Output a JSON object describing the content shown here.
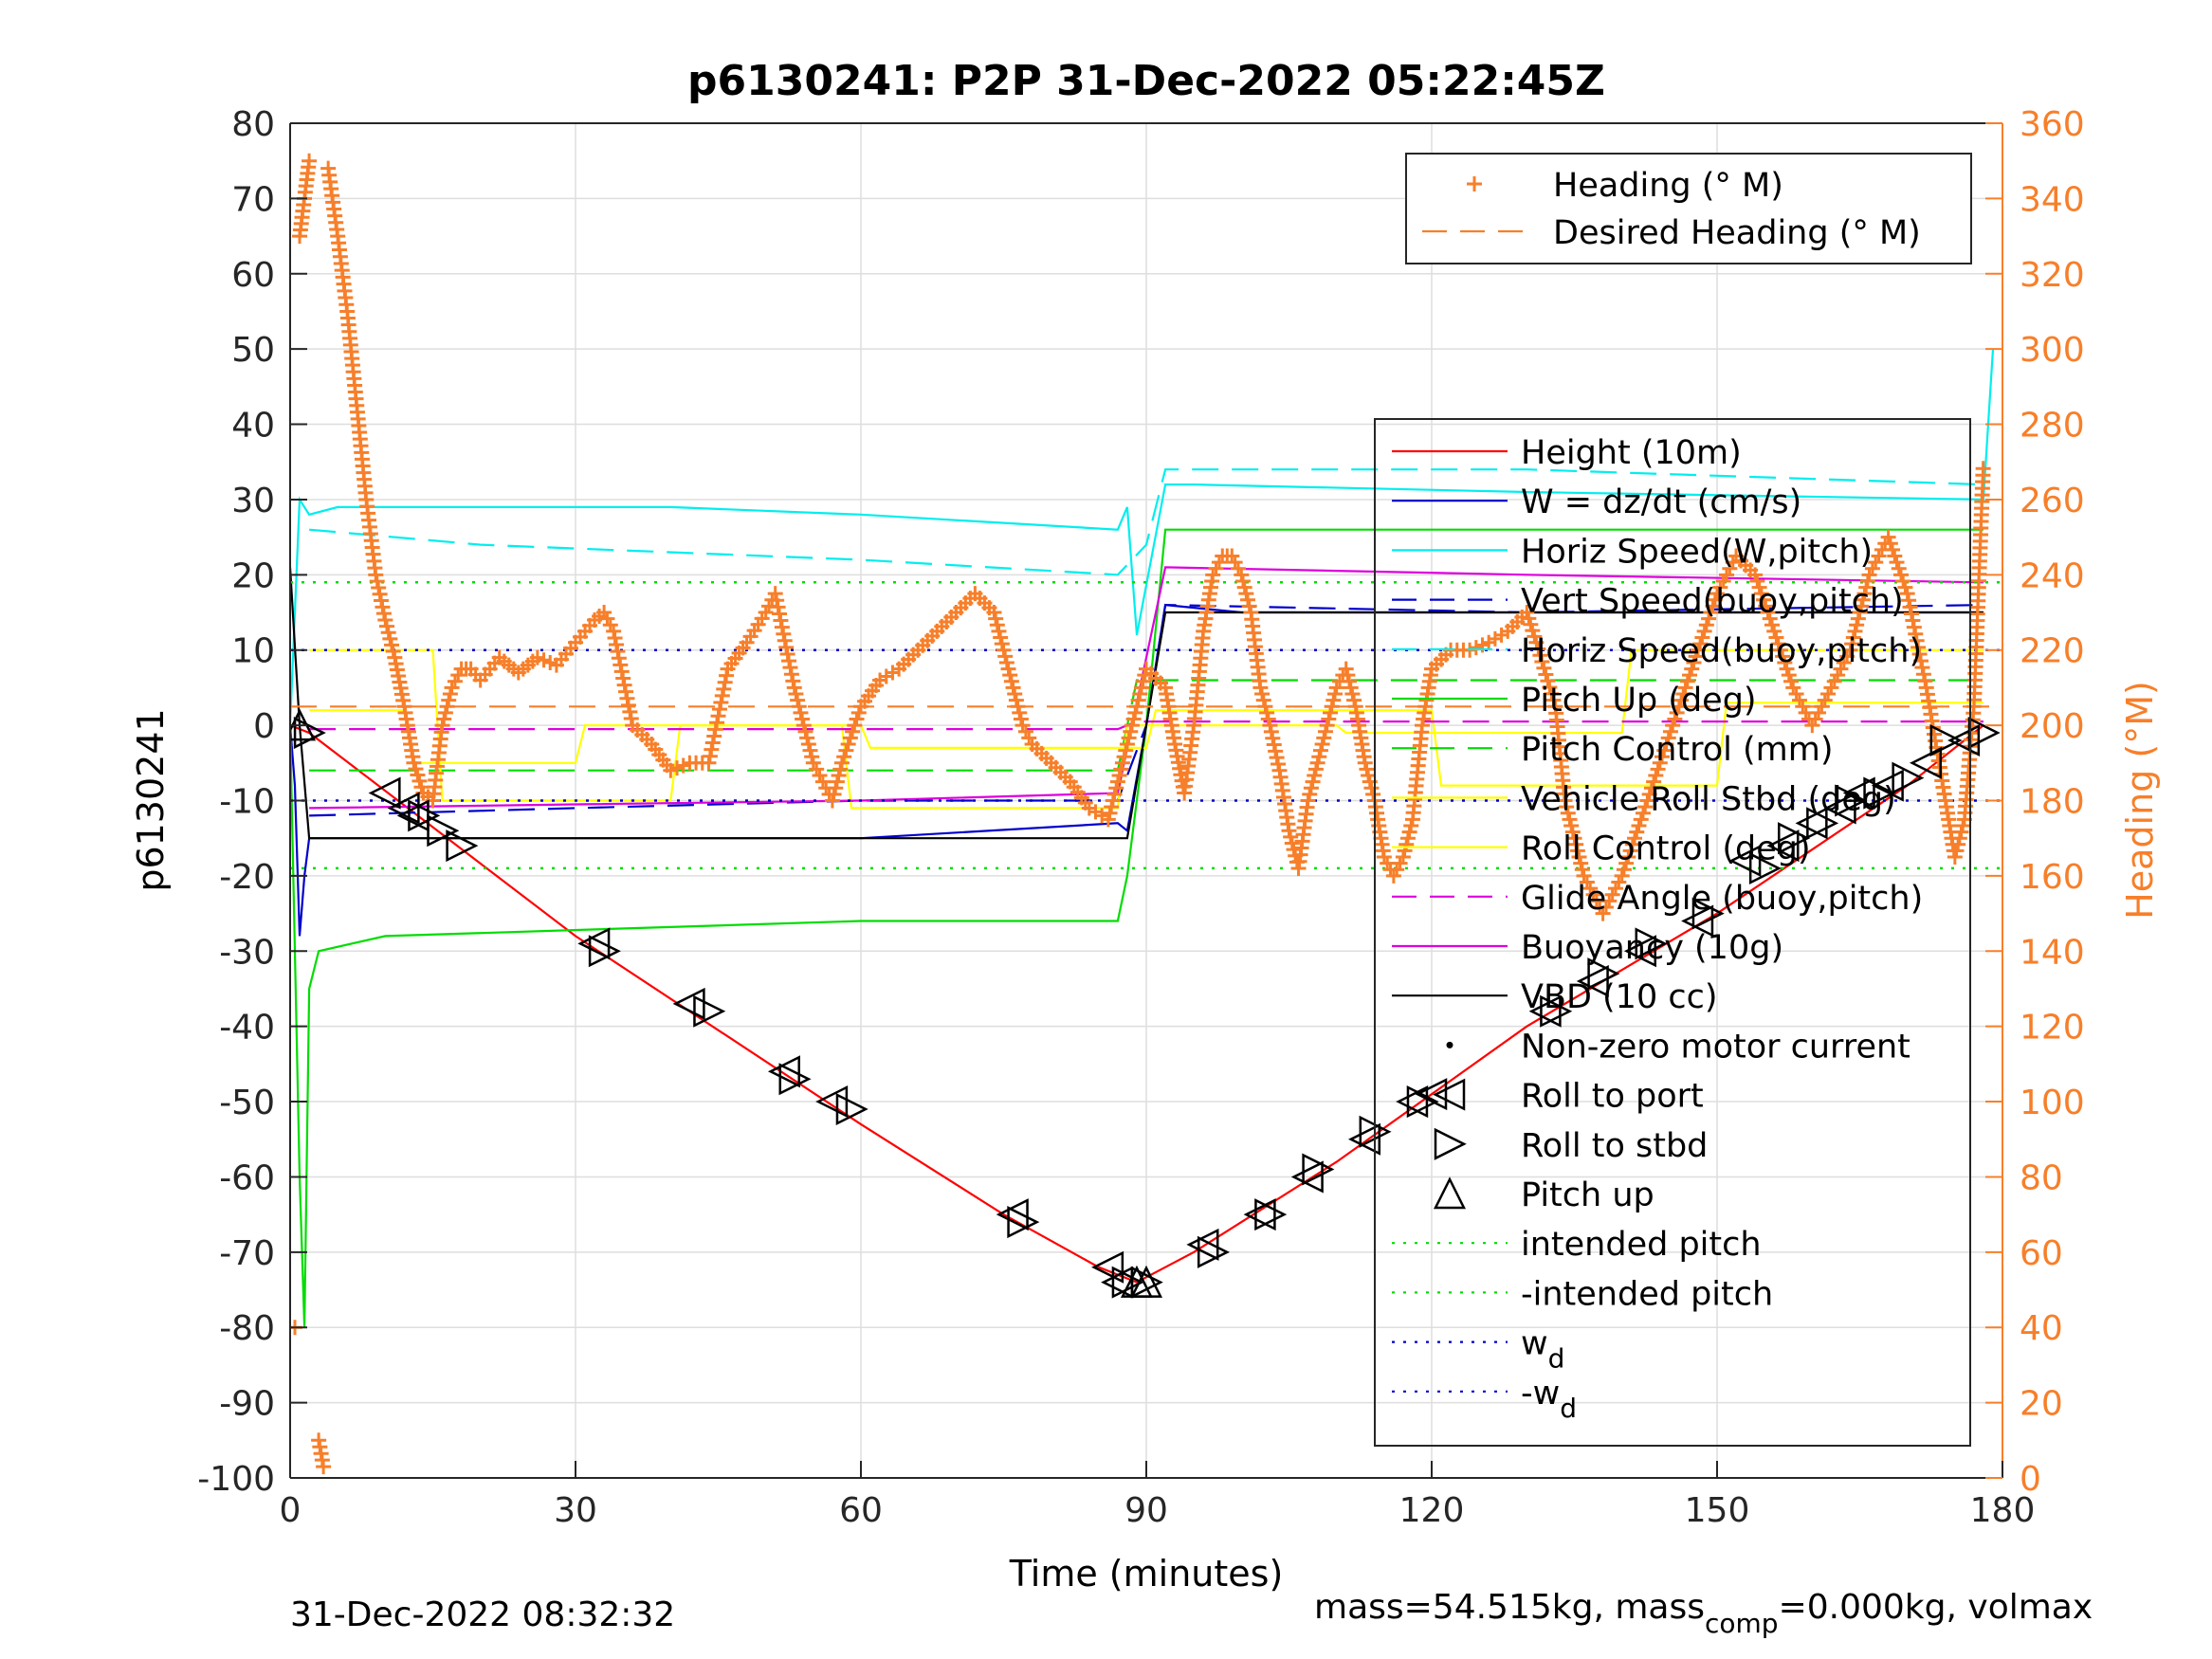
{
  "chart_data": {
    "type": "line",
    "title": "p6130241: P2P 31-Dec-2022 05:22:45Z",
    "xlabel": "Time (minutes)",
    "ylabel_left": "p6130241",
    "ylabel_right": "Heading (°M)",
    "footer_left": "31-Dec-2022 08:32:32",
    "footer_right_prefix": "mass=54.515kg, mass",
    "footer_right_sub": "comp",
    "footer_right_suffix": "=0.000kg, volmax",
    "xlim": [
      0,
      180
    ],
    "ylim_left": [
      -100,
      80
    ],
    "ylim_right": [
      0,
      360
    ],
    "xticks": [
      0,
      30,
      60,
      90,
      120,
      150,
      180
    ],
    "xtick_labels": [
      "0",
      "30",
      "60",
      "90",
      "120",
      "150",
      "180"
    ],
    "yticks_left": [
      80,
      70,
      60,
      50,
      40,
      30,
      20,
      10,
      0,
      -10,
      -20,
      -30,
      -40,
      -50,
      -60,
      -70,
      -80,
      -90,
      -100
    ],
    "ytick_labels_left": [
      "80",
      "70",
      "60",
      "50",
      "40",
      "30",
      "20",
      "10",
      "0",
      "-10",
      "-20",
      "-30",
      "-40",
      "-50",
      "-60",
      "-70",
      "-80",
      "-90",
      "-100"
    ],
    "yticks_right": [
      360,
      340,
      320,
      300,
      280,
      260,
      240,
      220,
      200,
      180,
      160,
      140,
      120,
      100,
      80,
      60,
      40,
      20,
      0
    ],
    "ytick_labels_right": [
      "360",
      "340",
      "320",
      "300",
      "280",
      "260",
      "240",
      "220",
      "200",
      "180",
      "160",
      "140",
      "120",
      "100",
      "80",
      "60",
      "40",
      "20",
      "0"
    ],
    "grid": true,
    "legend_heading": {
      "placement": "top-right",
      "entries": [
        {
          "label": "Heading (° M)",
          "color": "#f77f2a",
          "style": "plus"
        },
        {
          "label": "Desired Heading (° M)",
          "color": "#f77f2a",
          "style": "dashed"
        }
      ]
    },
    "legend_main": {
      "placement": "right",
      "entries": [
        {
          "label": "Height (10m)",
          "color": "#ff0000",
          "style": "solid"
        },
        {
          "label": "W = dz/dt (cm/s)",
          "color": "#0000cc",
          "style": "solid"
        },
        {
          "label": "Horiz Speed(W,pitch)",
          "color": "#00eeee",
          "style": "solid"
        },
        {
          "label": "Vert Speed(buoy,pitch)",
          "color": "#0000cc",
          "style": "dashed"
        },
        {
          "label": "Horiz Speed(buoy,pitch)",
          "color": "#00eeee",
          "style": "dashed"
        },
        {
          "label": "Pitch Up (deg)",
          "color": "#00dd00",
          "style": "solid"
        },
        {
          "label": "Pitch Control (mm)",
          "color": "#00dd00",
          "style": "dashed"
        },
        {
          "label": "Vehicle Roll Stbd (deg)",
          "color": "#ffff00",
          "style": "solid"
        },
        {
          "label": "Roll Control (deg)",
          "color": "#ffff00",
          "style": "solid"
        },
        {
          "label": "Glide Angle (buoy,pitch)",
          "color": "#dd00dd",
          "style": "dashed"
        },
        {
          "label": "Buoyancy (10g)",
          "color": "#dd00dd",
          "style": "solid"
        },
        {
          "label": "VBD (10 cc)",
          "color": "#000000",
          "style": "solid"
        },
        {
          "label": "Non-zero motor current",
          "color": "#000000",
          "style": "dot"
        },
        {
          "label": "Roll to port",
          "color": "#000000",
          "style": "tri-left"
        },
        {
          "label": "Roll to stbd",
          "color": "#000000",
          "style": "tri-right"
        },
        {
          "label": "Pitch up",
          "color": "#000000",
          "style": "tri-up"
        },
        {
          "label": "intended pitch",
          "color": "#00dd00",
          "style": "dotted"
        },
        {
          "label": "-intended pitch",
          "color": "#00dd00",
          "style": "dotted"
        },
        {
          "label": "w",
          "sub": "d",
          "color": "#0000cc",
          "style": "dotted"
        },
        {
          "label": "-w",
          "sub": "d",
          "color": "#0000cc",
          "style": "dotted"
        }
      ]
    },
    "series": [
      {
        "name": "Height (10m)",
        "axis": "left",
        "color": "#ff0000",
        "dash": "",
        "x": [
          0,
          2,
          30,
          60,
          75,
          85,
          89,
          95,
          110,
          130,
          150,
          170,
          178
        ],
        "y": [
          0,
          -1,
          -28,
          -53,
          -65,
          -72,
          -74,
          -70,
          -58,
          -40,
          -25,
          -8,
          0
        ]
      },
      {
        "name": "W = dz/dt (cm/s)",
        "axis": "left",
        "color": "#0000cc",
        "dash": "",
        "x": [
          0,
          0.5,
          1,
          1.5,
          2,
          3,
          10,
          30,
          60,
          87,
          88,
          90,
          92,
          100,
          130,
          150,
          178
        ],
        "y": [
          0,
          -8,
          -28,
          -20,
          -15,
          -15,
          -15,
          -15,
          -15,
          -13,
          -14,
          0,
          16,
          15,
          15,
          15,
          15
        ]
      },
      {
        "name": "Horiz Speed(W,pitch)",
        "axis": "left",
        "color": "#00eeee",
        "dash": "",
        "x": [
          0,
          1,
          2,
          5,
          20,
          40,
          60,
          87,
          88,
          89,
          92,
          95,
          130,
          178,
          179
        ],
        "y": [
          0,
          30,
          28,
          29,
          29,
          29,
          28,
          26,
          29,
          12,
          32,
          32,
          31,
          30,
          50
        ]
      },
      {
        "name": "Vert Speed(buoy,pitch)",
        "axis": "left",
        "color": "#0000cc",
        "dash": "28,14",
        "x": [
          2,
          30,
          60,
          87,
          90,
          92,
          130,
          178
        ],
        "y": [
          -12,
          -11,
          -10,
          -10,
          0,
          16,
          15,
          16
        ]
      },
      {
        "name": "Horiz Speed(buoy,pitch)",
        "axis": "left",
        "color": "#00eeee",
        "dash": "28,14",
        "x": [
          2,
          20,
          60,
          87,
          90,
          92,
          130,
          178
        ],
        "y": [
          26,
          24,
          22,
          20,
          24,
          34,
          34,
          32
        ]
      },
      {
        "name": "Pitch Up (deg)",
        "axis": "left",
        "color": "#00dd00",
        "dash": "",
        "x": [
          0,
          1,
          1.5,
          2,
          3,
          10,
          60,
          87,
          88,
          90,
          92,
          130,
          178
        ],
        "y": [
          0,
          -60,
          -80,
          -35,
          -30,
          -28,
          -26,
          -26,
          -20,
          0,
          26,
          26,
          26
        ]
      },
      {
        "name": "Pitch Control (mm)",
        "axis": "left",
        "color": "#00dd00",
        "dash": "28,14",
        "x": [
          2,
          87,
          89,
          178
        ],
        "y": [
          -6,
          -6,
          6,
          6
        ]
      },
      {
        "name": "Vehicle Roll Stbd (deg)",
        "axis": "left",
        "color": "#ffff00",
        "dash": "",
        "x": [
          2,
          12,
          13,
          30,
          31,
          60,
          61,
          90,
          91,
          120,
          121,
          150,
          151,
          178
        ],
        "y": [
          2,
          2,
          -5,
          -5,
          0,
          0,
          -3,
          -3,
          2,
          2,
          -8,
          -8,
          3,
          3
        ]
      },
      {
        "name": "Roll Control (deg)",
        "axis": "left",
        "color": "#ffff00",
        "dash": "",
        "x": [
          2,
          15,
          16,
          40,
          41,
          58,
          59,
          87,
          88,
          110,
          111,
          140,
          141,
          178
        ],
        "y": [
          10,
          10,
          -10,
          -10,
          0,
          0,
          -11,
          -11,
          0,
          0,
          -1,
          -1,
          10,
          10
        ]
      },
      {
        "name": "Glide Angle (buoy,pitch)",
        "axis": "left",
        "color": "#dd00dd",
        "dash": "28,14",
        "x": [
          2,
          87,
          89,
          178
        ],
        "y": [
          -0.5,
          -0.5,
          0.5,
          0.5
        ]
      },
      {
        "name": "Buoyancy (10g)",
        "axis": "left",
        "color": "#dd00dd",
        "dash": "",
        "x": [
          2,
          30,
          60,
          87,
          92,
          130,
          178
        ],
        "y": [
          -11,
          -10.5,
          -10,
          -9,
          21,
          20,
          19
        ]
      },
      {
        "name": "VBD (10 cc)",
        "axis": "left",
        "color": "#000000",
        "dash": "",
        "x": [
          0,
          1,
          2,
          87,
          88,
          92,
          178
        ],
        "y": [
          21,
          0,
          -15,
          -15,
          -15,
          15,
          15
        ]
      },
      {
        "name": "intended pitch",
        "axis": "left",
        "color": "#00dd00",
        "dash": "3,9",
        "x": [
          0,
          180
        ],
        "y": [
          19,
          19
        ]
      },
      {
        "name": "-intended pitch",
        "axis": "left",
        "color": "#00dd00",
        "dash": "3,9",
        "x": [
          0,
          180
        ],
        "y": [
          -19,
          -19
        ]
      },
      {
        "name": "w",
        "axis": "left",
        "color": "#0000cc",
        "dash": "3,9",
        "x": [
          0,
          180
        ],
        "y": [
          10,
          10
        ]
      },
      {
        "name": "-w",
        "axis": "left",
        "color": "#0000cc",
        "dash": "3,9",
        "x": [
          0,
          180
        ],
        "y": [
          -10,
          -10
        ]
      },
      {
        "name": "Desired Heading (° M)",
        "axis": "right",
        "color": "#f77f2a",
        "dash": "28,14",
        "x": [
          0,
          180
        ],
        "y": [
          205,
          205
        ]
      }
    ],
    "heading": {
      "name": "Heading (° M)",
      "axis": "right",
      "color": "#f77f2a",
      "x": [
        0.5,
        1,
        1.5,
        2,
        3,
        3.5,
        4,
        5,
        6,
        7,
        8,
        9,
        10,
        11,
        12,
        13,
        14,
        15,
        16,
        17,
        18,
        19,
        20,
        22,
        24,
        26,
        28,
        30,
        32,
        33,
        34,
        36,
        38,
        40,
        42,
        44,
        46,
        48,
        50,
        51,
        53,
        55,
        57,
        58,
        60,
        62,
        64,
        66,
        68,
        70,
        72,
        74,
        75,
        76,
        77,
        78,
        80,
        82,
        84,
        86,
        87,
        88,
        90,
        92,
        93,
        94,
        95,
        96,
        97,
        98,
        99,
        100,
        101,
        102,
        103,
        104,
        105,
        106,
        107,
        108,
        109,
        110,
        111,
        112,
        113,
        114,
        115,
        116,
        117,
        118,
        119,
        120,
        122,
        124,
        126,
        128,
        130,
        131,
        133,
        134,
        136,
        138,
        140,
        142,
        144,
        146,
        148,
        150,
        152,
        154,
        156,
        158,
        160,
        162,
        164,
        166,
        168,
        170,
        172,
        174,
        175,
        176,
        177,
        178
      ],
      "y": [
        40,
        330,
        340,
        350,
        10,
        3,
        348,
        330,
        310,
        285,
        260,
        240,
        228,
        218,
        205,
        190,
        182,
        180,
        200,
        210,
        215,
        215,
        212,
        218,
        214,
        218,
        216,
        222,
        228,
        230,
        225,
        200,
        195,
        188,
        190,
        190,
        215,
        222,
        230,
        235,
        210,
        190,
        180,
        190,
        205,
        212,
        215,
        220,
        225,
        230,
        235,
        230,
        220,
        210,
        200,
        195,
        190,
        185,
        178,
        175,
        185,
        195,
        215,
        210,
        195,
        182,
        200,
        225,
        240,
        245,
        245,
        240,
        230,
        210,
        200,
        188,
        172,
        162,
        180,
        190,
        200,
        210,
        215,
        205,
        190,
        180,
        165,
        160,
        165,
        175,
        200,
        215,
        220,
        220,
        222,
        225,
        230,
        222,
        205,
        180,
        160,
        150,
        160,
        175,
        190,
        205,
        220,
        235,
        245,
        240,
        225,
        210,
        200,
        210,
        220,
        240,
        250,
        235,
        210,
        180,
        165,
        175,
        205,
        270
      ]
    },
    "markers": {
      "roll_to_port": {
        "x": [
          10,
          12,
          13,
          32,
          42,
          52,
          57,
          76,
          86,
          87,
          96,
          102,
          107,
          113,
          118,
          120,
          132,
          137,
          142,
          148,
          153,
          157,
          160,
          163,
          165,
          168,
          172,
          176
        ],
        "y": [
          -9,
          -11,
          -12,
          -29,
          -37,
          -46,
          -50,
          -65,
          -72,
          -74,
          -69,
          -65,
          -60,
          -55,
          -50,
          -49,
          -38,
          -34,
          -30,
          -26,
          -18,
          -16,
          -13,
          -11,
          -9,
          -8,
          -5,
          -2
        ]
      },
      "roll_to_stbd": {
        "x": [
          2,
          14,
          16,
          18,
          33,
          44,
          53,
          59,
          77,
          88,
          90,
          97,
          103,
          108,
          114,
          119,
          133,
          138,
          143,
          149,
          155,
          158,
          161,
          164,
          167,
          170,
          174,
          178
        ],
        "y": [
          -1,
          -12,
          -14,
          -16,
          -30,
          -38,
          -47,
          -51,
          -66,
          -74,
          -74,
          -70,
          -65,
          -59,
          -54,
          -50,
          -38,
          -33,
          -29,
          -25,
          -19,
          -15,
          -13,
          -10,
          -9,
          -7,
          -2,
          -1
        ]
      },
      "pitch_up": {
        "x": [
          1,
          89,
          90
        ],
        "y": [
          0,
          -74,
          -74
        ]
      }
    }
  }
}
